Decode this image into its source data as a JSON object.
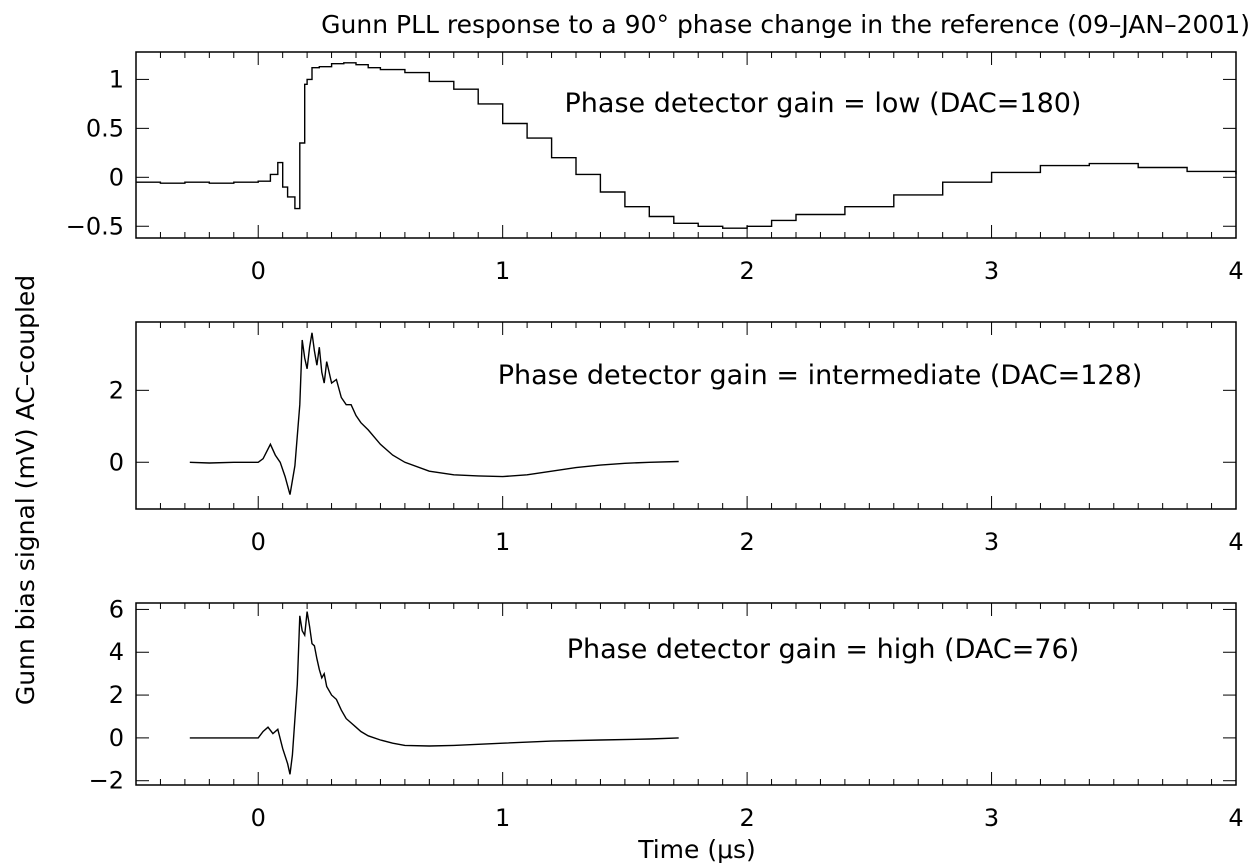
{
  "chart_data": {
    "type": "line",
    "title": "Gunn PLL response to a 90° phase change in the reference (09–JAN–2001)",
    "xlabel": "Time (μs)",
    "ylabel": "Gunn bias signal (mV) AC–coupled",
    "panels": [
      {
        "annotation": "Phase detector gain = low (DAC=180)",
        "xlim": [
          -0.5,
          4
        ],
        "ylim": [
          -0.62,
          1.28
        ],
        "xticks": [
          0,
          1,
          2,
          3,
          4
        ],
        "xtick_labels": [
          "0",
          "1",
          "2",
          "3",
          "4"
        ],
        "yticks": [
          1,
          0.5,
          0,
          -0.5
        ],
        "ytick_labels": [
          "1",
          "0.5",
          "0",
          "−0.5"
        ],
        "style": "step",
        "series": {
          "x": [
            -0.5,
            -0.4,
            -0.3,
            -0.2,
            -0.1,
            0,
            0.05,
            0.08,
            0.1,
            0.12,
            0.15,
            0.17,
            0.19,
            0.2,
            0.22,
            0.25,
            0.3,
            0.35,
            0.4,
            0.45,
            0.5,
            0.6,
            0.7,
            0.8,
            0.9,
            1.0,
            1.1,
            1.2,
            1.3,
            1.4,
            1.5,
            1.6,
            1.7,
            1.8,
            1.9,
            2.0,
            2.1,
            2.2,
            2.4,
            2.6,
            2.8,
            3.0,
            3.2,
            3.4,
            3.6,
            3.8,
            4.0
          ],
          "y": [
            -0.05,
            -0.06,
            -0.05,
            -0.06,
            -0.05,
            -0.04,
            0.03,
            0.15,
            -0.1,
            -0.2,
            -0.32,
            0.35,
            0.95,
            1.0,
            1.12,
            1.13,
            1.16,
            1.17,
            1.15,
            1.12,
            1.1,
            1.07,
            0.98,
            0.9,
            0.75,
            0.55,
            0.4,
            0.2,
            0.03,
            -0.15,
            -0.3,
            -0.4,
            -0.47,
            -0.5,
            -0.52,
            -0.5,
            -0.44,
            -0.38,
            -0.3,
            -0.18,
            -0.05,
            0.05,
            0.12,
            0.14,
            0.1,
            0.06,
            0.03
          ]
        }
      },
      {
        "annotation": "Phase detector gain = intermediate (DAC=128)",
        "xlim": [
          -0.5,
          4
        ],
        "ylim": [
          -1.3,
          3.9
        ],
        "xticks": [
          0,
          1,
          2,
          3,
          4
        ],
        "xtick_labels": [
          "0",
          "1",
          "2",
          "3",
          "4"
        ],
        "yticks": [
          2,
          0
        ],
        "ytick_labels": [
          "2",
          "0"
        ],
        "style": "line",
        "series": {
          "x": [
            -0.28,
            -0.2,
            -0.1,
            0,
            0.02,
            0.05,
            0.07,
            0.09,
            0.11,
            0.13,
            0.15,
            0.17,
            0.18,
            0.19,
            0.2,
            0.21,
            0.22,
            0.23,
            0.24,
            0.25,
            0.26,
            0.27,
            0.28,
            0.3,
            0.32,
            0.34,
            0.36,
            0.38,
            0.4,
            0.42,
            0.45,
            0.5,
            0.55,
            0.6,
            0.7,
            0.8,
            0.9,
            1.0,
            1.1,
            1.2,
            1.3,
            1.4,
            1.5,
            1.6,
            1.72
          ],
          "y": [
            0,
            -0.02,
            0.0,
            0.0,
            0.1,
            0.5,
            0.2,
            0.0,
            -0.4,
            -0.9,
            -0.1,
            1.6,
            3.4,
            2.9,
            2.6,
            3.2,
            3.6,
            3.1,
            2.7,
            3.2,
            2.5,
            2.2,
            2.8,
            2.2,
            2.3,
            1.8,
            1.6,
            1.6,
            1.3,
            1.1,
            0.9,
            0.5,
            0.2,
            0.0,
            -0.25,
            -0.35,
            -0.38,
            -0.4,
            -0.35,
            -0.25,
            -0.15,
            -0.08,
            -0.03,
            0.0,
            0.02
          ]
        }
      },
      {
        "annotation": "Phase detector gain = high (DAC=76)",
        "xlim": [
          -0.5,
          4
        ],
        "ylim": [
          -2.2,
          6.3
        ],
        "xticks": [
          0,
          1,
          2,
          3,
          4
        ],
        "xtick_labels": [
          "0",
          "1",
          "2",
          "3",
          "4"
        ],
        "yticks": [
          6,
          4,
          2,
          0,
          -2
        ],
        "ytick_labels": [
          "6",
          "4",
          "2",
          "0",
          "−2"
        ],
        "style": "line",
        "series": {
          "x": [
            -0.28,
            -0.2,
            -0.1,
            0,
            0.02,
            0.04,
            0.06,
            0.08,
            0.1,
            0.12,
            0.13,
            0.14,
            0.16,
            0.17,
            0.18,
            0.19,
            0.2,
            0.21,
            0.22,
            0.23,
            0.24,
            0.25,
            0.26,
            0.27,
            0.28,
            0.3,
            0.32,
            0.34,
            0.36,
            0.38,
            0.4,
            0.42,
            0.45,
            0.5,
            0.55,
            0.6,
            0.7,
            0.8,
            0.9,
            1.0,
            1.2,
            1.4,
            1.6,
            1.72
          ],
          "y": [
            0,
            0,
            0,
            0,
            0.3,
            0.5,
            0.2,
            0.4,
            -0.5,
            -1.2,
            -1.7,
            -0.8,
            2.5,
            5.7,
            5.0,
            4.8,
            5.9,
            5.2,
            4.4,
            4.3,
            3.7,
            3.2,
            2.8,
            3.0,
            2.4,
            2.0,
            1.8,
            1.3,
            0.9,
            0.7,
            0.5,
            0.3,
            0.1,
            -0.1,
            -0.25,
            -0.35,
            -0.38,
            -0.35,
            -0.3,
            -0.25,
            -0.15,
            -0.1,
            -0.05,
            0
          ]
        }
      }
    ]
  }
}
